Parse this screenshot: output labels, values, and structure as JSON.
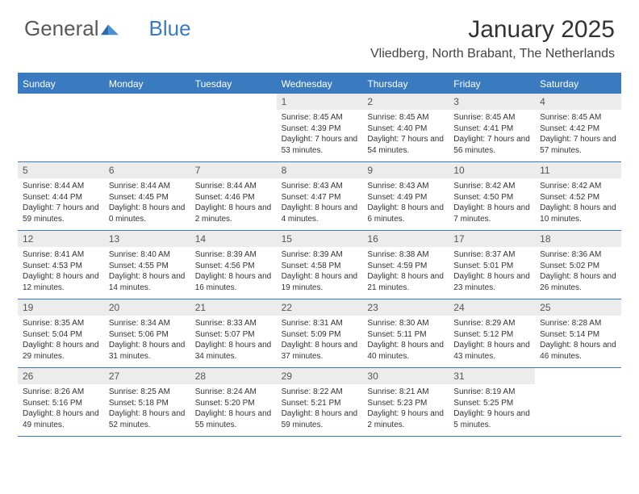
{
  "logo": {
    "text_general": "General",
    "text_blue": "Blue"
  },
  "title": "January 2025",
  "location": "Vliedberg, North Brabant, The Netherlands",
  "colors": {
    "header_bg": "#3a7bbf",
    "daynum_bg": "#ececec",
    "text": "#333333",
    "logo_gray": "#5a5a5a",
    "logo_blue": "#3a7bbf"
  },
  "day_labels": [
    "Sunday",
    "Monday",
    "Tuesday",
    "Wednesday",
    "Thursday",
    "Friday",
    "Saturday"
  ],
  "weeks": [
    [
      {
        "n": "",
        "sr": "",
        "ss": "",
        "dl": ""
      },
      {
        "n": "",
        "sr": "",
        "ss": "",
        "dl": ""
      },
      {
        "n": "",
        "sr": "",
        "ss": "",
        "dl": ""
      },
      {
        "n": "1",
        "sr": "Sunrise: 8:45 AM",
        "ss": "Sunset: 4:39 PM",
        "dl": "Daylight: 7 hours and 53 minutes."
      },
      {
        "n": "2",
        "sr": "Sunrise: 8:45 AM",
        "ss": "Sunset: 4:40 PM",
        "dl": "Daylight: 7 hours and 54 minutes."
      },
      {
        "n": "3",
        "sr": "Sunrise: 8:45 AM",
        "ss": "Sunset: 4:41 PM",
        "dl": "Daylight: 7 hours and 56 minutes."
      },
      {
        "n": "4",
        "sr": "Sunrise: 8:45 AM",
        "ss": "Sunset: 4:42 PM",
        "dl": "Daylight: 7 hours and 57 minutes."
      }
    ],
    [
      {
        "n": "5",
        "sr": "Sunrise: 8:44 AM",
        "ss": "Sunset: 4:44 PM",
        "dl": "Daylight: 7 hours and 59 minutes."
      },
      {
        "n": "6",
        "sr": "Sunrise: 8:44 AM",
        "ss": "Sunset: 4:45 PM",
        "dl": "Daylight: 8 hours and 0 minutes."
      },
      {
        "n": "7",
        "sr": "Sunrise: 8:44 AM",
        "ss": "Sunset: 4:46 PM",
        "dl": "Daylight: 8 hours and 2 minutes."
      },
      {
        "n": "8",
        "sr": "Sunrise: 8:43 AM",
        "ss": "Sunset: 4:47 PM",
        "dl": "Daylight: 8 hours and 4 minutes."
      },
      {
        "n": "9",
        "sr": "Sunrise: 8:43 AM",
        "ss": "Sunset: 4:49 PM",
        "dl": "Daylight: 8 hours and 6 minutes."
      },
      {
        "n": "10",
        "sr": "Sunrise: 8:42 AM",
        "ss": "Sunset: 4:50 PM",
        "dl": "Daylight: 8 hours and 7 minutes."
      },
      {
        "n": "11",
        "sr": "Sunrise: 8:42 AM",
        "ss": "Sunset: 4:52 PM",
        "dl": "Daylight: 8 hours and 10 minutes."
      }
    ],
    [
      {
        "n": "12",
        "sr": "Sunrise: 8:41 AM",
        "ss": "Sunset: 4:53 PM",
        "dl": "Daylight: 8 hours and 12 minutes."
      },
      {
        "n": "13",
        "sr": "Sunrise: 8:40 AM",
        "ss": "Sunset: 4:55 PM",
        "dl": "Daylight: 8 hours and 14 minutes."
      },
      {
        "n": "14",
        "sr": "Sunrise: 8:39 AM",
        "ss": "Sunset: 4:56 PM",
        "dl": "Daylight: 8 hours and 16 minutes."
      },
      {
        "n": "15",
        "sr": "Sunrise: 8:39 AM",
        "ss": "Sunset: 4:58 PM",
        "dl": "Daylight: 8 hours and 19 minutes."
      },
      {
        "n": "16",
        "sr": "Sunrise: 8:38 AM",
        "ss": "Sunset: 4:59 PM",
        "dl": "Daylight: 8 hours and 21 minutes."
      },
      {
        "n": "17",
        "sr": "Sunrise: 8:37 AM",
        "ss": "Sunset: 5:01 PM",
        "dl": "Daylight: 8 hours and 23 minutes."
      },
      {
        "n": "18",
        "sr": "Sunrise: 8:36 AM",
        "ss": "Sunset: 5:02 PM",
        "dl": "Daylight: 8 hours and 26 minutes."
      }
    ],
    [
      {
        "n": "19",
        "sr": "Sunrise: 8:35 AM",
        "ss": "Sunset: 5:04 PM",
        "dl": "Daylight: 8 hours and 29 minutes."
      },
      {
        "n": "20",
        "sr": "Sunrise: 8:34 AM",
        "ss": "Sunset: 5:06 PM",
        "dl": "Daylight: 8 hours and 31 minutes."
      },
      {
        "n": "21",
        "sr": "Sunrise: 8:33 AM",
        "ss": "Sunset: 5:07 PM",
        "dl": "Daylight: 8 hours and 34 minutes."
      },
      {
        "n": "22",
        "sr": "Sunrise: 8:31 AM",
        "ss": "Sunset: 5:09 PM",
        "dl": "Daylight: 8 hours and 37 minutes."
      },
      {
        "n": "23",
        "sr": "Sunrise: 8:30 AM",
        "ss": "Sunset: 5:11 PM",
        "dl": "Daylight: 8 hours and 40 minutes."
      },
      {
        "n": "24",
        "sr": "Sunrise: 8:29 AM",
        "ss": "Sunset: 5:12 PM",
        "dl": "Daylight: 8 hours and 43 minutes."
      },
      {
        "n": "25",
        "sr": "Sunrise: 8:28 AM",
        "ss": "Sunset: 5:14 PM",
        "dl": "Daylight: 8 hours and 46 minutes."
      }
    ],
    [
      {
        "n": "26",
        "sr": "Sunrise: 8:26 AM",
        "ss": "Sunset: 5:16 PM",
        "dl": "Daylight: 8 hours and 49 minutes."
      },
      {
        "n": "27",
        "sr": "Sunrise: 8:25 AM",
        "ss": "Sunset: 5:18 PM",
        "dl": "Daylight: 8 hours and 52 minutes."
      },
      {
        "n": "28",
        "sr": "Sunrise: 8:24 AM",
        "ss": "Sunset: 5:20 PM",
        "dl": "Daylight: 8 hours and 55 minutes."
      },
      {
        "n": "29",
        "sr": "Sunrise: 8:22 AM",
        "ss": "Sunset: 5:21 PM",
        "dl": "Daylight: 8 hours and 59 minutes."
      },
      {
        "n": "30",
        "sr": "Sunrise: 8:21 AM",
        "ss": "Sunset: 5:23 PM",
        "dl": "Daylight: 9 hours and 2 minutes."
      },
      {
        "n": "31",
        "sr": "Sunrise: 8:19 AM",
        "ss": "Sunset: 5:25 PM",
        "dl": "Daylight: 9 hours and 5 minutes."
      },
      {
        "n": "",
        "sr": "",
        "ss": "",
        "dl": ""
      }
    ]
  ]
}
